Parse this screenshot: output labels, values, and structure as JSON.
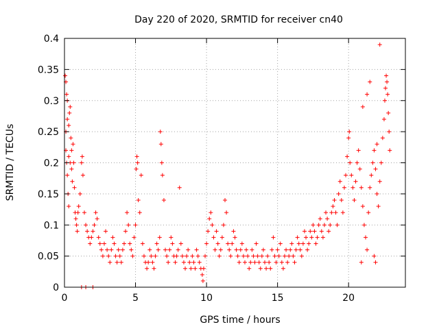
{
  "chart_data": {
    "type": "scatter",
    "title": "Day 220 of 2020, SRMTID for receiver cn40",
    "xlabel": "GPS time / hours",
    "ylabel": "SRMTID / TECUs",
    "xlim": [
      0,
      24
    ],
    "ylim": [
      0,
      0.4
    ],
    "x_ticks": [
      0,
      5,
      10,
      15,
      20
    ],
    "x_tick_labels": [
      "0",
      "5",
      "10",
      "15",
      "20"
    ],
    "y_ticks": [
      0,
      0.05,
      0.1,
      0.15,
      0.2,
      0.25,
      0.3,
      0.35,
      0.4
    ],
    "y_tick_labels": [
      "0",
      "0.05",
      "0.1",
      "0.15",
      "0.2",
      "0.25",
      "0.3",
      "0.35",
      "0.4"
    ],
    "grid": true,
    "marker": "+",
    "color": "#ff0000",
    "series": [
      {
        "name": "SRMTID",
        "points": [
          [
            0.05,
            0.34
          ],
          [
            0.1,
            0.33
          ],
          [
            0.15,
            0.31
          ],
          [
            0.2,
            0.3
          ],
          [
            0.1,
            0.25
          ],
          [
            0.15,
            0.2
          ],
          [
            0.2,
            0.18
          ],
          [
            0.25,
            0.15
          ],
          [
            0.3,
            0.13
          ],
          [
            0.1,
            0.22
          ],
          [
            0.2,
            0.27
          ],
          [
            0.3,
            0.26
          ],
          [
            0.35,
            0.28
          ],
          [
            0.4,
            0.29
          ],
          [
            0.45,
            0.24
          ],
          [
            0.5,
            0.22
          ],
          [
            0.3,
            0.21
          ],
          [
            0.4,
            0.2
          ],
          [
            0.5,
            0.19
          ],
          [
            0.55,
            0.17
          ],
          [
            0.6,
            0.23
          ],
          [
            0.65,
            0.2
          ],
          [
            0.7,
            0.16
          ],
          [
            0.75,
            0.12
          ],
          [
            0.8,
            0.11
          ],
          [
            0.85,
            0.1
          ],
          [
            0.9,
            0.09
          ],
          [
            0.95,
            0.12
          ],
          [
            1.0,
            0.13
          ],
          [
            1.1,
            0.15
          ],
          [
            1.2,
            0.2
          ],
          [
            1.25,
            0.21
          ],
          [
            1.3,
            0.18
          ],
          [
            1.4,
            0.12
          ],
          [
            1.5,
            0.1
          ],
          [
            1.6,
            0.09
          ],
          [
            1.7,
            0.08
          ],
          [
            1.8,
            0.07
          ],
          [
            1.9,
            0.08
          ],
          [
            2.0,
            0.09
          ],
          [
            2.1,
            0.1
          ],
          [
            2.2,
            0.12
          ],
          [
            2.3,
            0.11
          ],
          [
            2.4,
            0.08
          ],
          [
            2.5,
            0.07
          ],
          [
            2.6,
            0.06
          ],
          [
            2.7,
            0.05
          ],
          [
            2.8,
            0.07
          ],
          [
            2.9,
            0.09
          ],
          [
            3.0,
            0.06
          ],
          [
            3.1,
            0.05
          ],
          [
            3.2,
            0.04
          ],
          [
            3.3,
            0.06
          ],
          [
            3.4,
            0.08
          ],
          [
            3.5,
            0.07
          ],
          [
            3.6,
            0.05
          ],
          [
            3.7,
            0.04
          ],
          [
            3.8,
            0.06
          ],
          [
            3.9,
            0.05
          ],
          [
            4.0,
            0.04
          ],
          [
            4.1,
            0.06
          ],
          [
            4.2,
            0.07
          ],
          [
            4.3,
            0.09
          ],
          [
            4.4,
            0.12
          ],
          [
            4.5,
            0.1
          ],
          [
            4.6,
            0.07
          ],
          [
            4.7,
            0.06
          ],
          [
            4.8,
            0.05
          ],
          [
            4.9,
            0.08
          ],
          [
            5.0,
            0.1
          ],
          [
            5.05,
            0.19
          ],
          [
            5.1,
            0.21
          ],
          [
            5.15,
            0.2
          ],
          [
            5.2,
            0.14
          ],
          [
            5.3,
            0.12
          ],
          [
            5.4,
            0.18
          ],
          [
            5.5,
            0.07
          ],
          [
            5.6,
            0.05
          ],
          [
            5.7,
            0.04
          ],
          [
            5.8,
            0.03
          ],
          [
            5.9,
            0.04
          ],
          [
            6.0,
            0.06
          ],
          [
            6.1,
            0.05
          ],
          [
            6.2,
            0.04
          ],
          [
            6.3,
            0.03
          ],
          [
            6.4,
            0.05
          ],
          [
            6.5,
            0.07
          ],
          [
            6.6,
            0.06
          ],
          [
            6.7,
            0.08
          ],
          [
            6.75,
            0.25
          ],
          [
            6.8,
            0.23
          ],
          [
            6.85,
            0.2
          ],
          [
            6.9,
            0.18
          ],
          [
            7.0,
            0.14
          ],
          [
            7.1,
            0.06
          ],
          [
            7.2,
            0.05
          ],
          [
            7.3,
            0.04
          ],
          [
            7.4,
            0.06
          ],
          [
            7.5,
            0.08
          ],
          [
            7.6,
            0.07
          ],
          [
            7.7,
            0.05
          ],
          [
            7.8,
            0.04
          ],
          [
            7.9,
            0.05
          ],
          [
            8.0,
            0.06
          ],
          [
            8.1,
            0.16
          ],
          [
            8.2,
            0.07
          ],
          [
            8.3,
            0.05
          ],
          [
            8.4,
            0.04
          ],
          [
            8.5,
            0.03
          ],
          [
            8.6,
            0.05
          ],
          [
            8.7,
            0.06
          ],
          [
            8.8,
            0.04
          ],
          [
            8.9,
            0.03
          ],
          [
            9.0,
            0.05
          ],
          [
            9.1,
            0.04
          ],
          [
            9.2,
            0.03
          ],
          [
            9.3,
            0.06
          ],
          [
            9.4,
            0.05
          ],
          [
            9.5,
            0.04
          ],
          [
            9.6,
            0.03
          ],
          [
            9.7,
            0.02
          ],
          [
            9.75,
            0.01
          ],
          [
            9.8,
            0.03
          ],
          [
            9.9,
            0.05
          ],
          [
            10.0,
            0.07
          ],
          [
            10.1,
            0.09
          ],
          [
            10.2,
            0.11
          ],
          [
            10.3,
            0.12
          ],
          [
            10.4,
            0.1
          ],
          [
            10.5,
            0.08
          ],
          [
            10.6,
            0.06
          ],
          [
            10.7,
            0.09
          ],
          [
            10.8,
            0.07
          ],
          [
            10.9,
            0.05
          ],
          [
            11.0,
            0.06
          ],
          [
            11.1,
            0.08
          ],
          [
            11.2,
            0.1
          ],
          [
            11.3,
            0.14
          ],
          [
            11.4,
            0.12
          ],
          [
            11.5,
            0.07
          ],
          [
            11.6,
            0.06
          ],
          [
            11.7,
            0.05
          ],
          [
            11.8,
            0.07
          ],
          [
            11.9,
            0.09
          ],
          [
            12.0,
            0.08
          ],
          [
            12.1,
            0.06
          ],
          [
            12.2,
            0.05
          ],
          [
            12.3,
            0.04
          ],
          [
            12.4,
            0.06
          ],
          [
            12.5,
            0.07
          ],
          [
            12.6,
            0.05
          ],
          [
            12.7,
            0.04
          ],
          [
            12.8,
            0.06
          ],
          [
            12.9,
            0.05
          ],
          [
            13.0,
            0.03
          ],
          [
            13.1,
            0.04
          ],
          [
            13.2,
            0.06
          ],
          [
            13.3,
            0.05
          ],
          [
            13.4,
            0.04
          ],
          [
            13.5,
            0.07
          ],
          [
            13.6,
            0.05
          ],
          [
            13.7,
            0.04
          ],
          [
            13.8,
            0.03
          ],
          [
            13.9,
            0.05
          ],
          [
            14.0,
            0.06
          ],
          [
            14.1,
            0.04
          ],
          [
            14.2,
            0.03
          ],
          [
            14.3,
            0.05
          ],
          [
            14.4,
            0.04
          ],
          [
            14.5,
            0.03
          ],
          [
            14.6,
            0.06
          ],
          [
            14.7,
            0.08
          ],
          [
            14.8,
            0.05
          ],
          [
            14.9,
            0.04
          ],
          [
            15.0,
            0.06
          ],
          [
            15.1,
            0.05
          ],
          [
            15.2,
            0.07
          ],
          [
            15.3,
            0.04
          ],
          [
            15.4,
            0.03
          ],
          [
            15.5,
            0.05
          ],
          [
            15.6,
            0.06
          ],
          [
            15.7,
            0.04
          ],
          [
            15.8,
            0.05
          ],
          [
            15.9,
            0.06
          ],
          [
            16.0,
            0.07
          ],
          [
            16.1,
            0.05
          ],
          [
            16.2,
            0.04
          ],
          [
            16.3,
            0.06
          ],
          [
            16.4,
            0.08
          ],
          [
            16.5,
            0.07
          ],
          [
            16.6,
            0.06
          ],
          [
            16.7,
            0.05
          ],
          [
            16.8,
            0.07
          ],
          [
            16.9,
            0.09
          ],
          [
            17.0,
            0.08
          ],
          [
            17.1,
            0.06
          ],
          [
            17.2,
            0.07
          ],
          [
            17.3,
            0.09
          ],
          [
            17.4,
            0.08
          ],
          [
            17.5,
            0.1
          ],
          [
            17.6,
            0.09
          ],
          [
            17.7,
            0.07
          ],
          [
            17.8,
            0.08
          ],
          [
            17.9,
            0.1
          ],
          [
            18.0,
            0.11
          ],
          [
            18.1,
            0.09
          ],
          [
            18.2,
            0.08
          ],
          [
            18.3,
            0.1
          ],
          [
            18.4,
            0.12
          ],
          [
            18.5,
            0.11
          ],
          [
            18.6,
            0.09
          ],
          [
            18.7,
            0.1
          ],
          [
            18.8,
            0.12
          ],
          [
            18.9,
            0.13
          ],
          [
            19.0,
            0.14
          ],
          [
            19.1,
            0.12
          ],
          [
            19.2,
            0.1
          ],
          [
            19.3,
            0.15
          ],
          [
            19.4,
            0.17
          ],
          [
            19.5,
            0.14
          ],
          [
            19.6,
            0.12
          ],
          [
            19.7,
            0.16
          ],
          [
            19.8,
            0.18
          ],
          [
            19.9,
            0.21
          ],
          [
            20.0,
            0.24
          ],
          [
            20.05,
            0.25
          ],
          [
            20.1,
            0.2
          ],
          [
            20.2,
            0.18
          ],
          [
            20.3,
            0.16
          ],
          [
            20.4,
            0.14
          ],
          [
            20.5,
            0.17
          ],
          [
            20.6,
            0.2
          ],
          [
            20.7,
            0.22
          ],
          [
            20.8,
            0.19
          ],
          [
            20.9,
            0.16
          ],
          [
            21.0,
            0.13
          ],
          [
            21.1,
            0.1
          ],
          [
            21.2,
            0.08
          ],
          [
            21.3,
            0.06
          ],
          [
            21.4,
            0.12
          ],
          [
            21.5,
            0.16
          ],
          [
            21.6,
            0.18
          ],
          [
            21.7,
            0.2
          ],
          [
            21.8,
            0.22
          ],
          [
            21.9,
            0.19
          ],
          [
            22.0,
            0.15
          ],
          [
            22.1,
            0.13
          ],
          [
            22.2,
            0.17
          ],
          [
            22.3,
            0.2
          ],
          [
            22.4,
            0.24
          ],
          [
            22.5,
            0.27
          ],
          [
            22.55,
            0.3
          ],
          [
            22.6,
            0.32
          ],
          [
            22.65,
            0.34
          ],
          [
            22.7,
            0.33
          ],
          [
            22.75,
            0.31
          ],
          [
            22.8,
            0.28
          ],
          [
            22.85,
            0.25
          ],
          [
            22.9,
            0.22
          ],
          [
            22.2,
            0.39
          ],
          [
            21.5,
            0.33
          ],
          [
            21.3,
            0.31
          ],
          [
            21.0,
            0.29
          ],
          [
            22.0,
            0.23
          ],
          [
            21.8,
            0.05
          ],
          [
            21.9,
            0.04
          ],
          [
            20.9,
            0.04
          ],
          [
            1.5,
            0.0
          ],
          [
            1.2,
            0.0
          ],
          [
            2.0,
            0.0
          ]
        ]
      }
    ]
  }
}
